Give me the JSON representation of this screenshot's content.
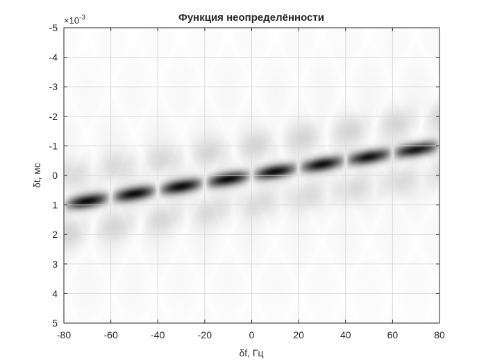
{
  "chart_data": {
    "type": "heatmap",
    "title": "Функция неопределённости",
    "xlabel": "δf, Гц",
    "ylabel": "δt, мс",
    "y_multiplier_label": "×10-3",
    "xlim": [
      -80,
      80
    ],
    "ylim": [
      -5,
      5
    ],
    "y_axis_reversed": true,
    "grid": true,
    "colormap": "gray-inverted",
    "x_ticks": [
      -80,
      -60,
      -40,
      -20,
      0,
      20,
      40,
      60,
      80
    ],
    "y_ticks": [
      -5,
      -4,
      -3,
      -2,
      -1,
      0,
      1,
      2,
      3,
      4,
      5
    ],
    "main_ridge": {
      "start": [
        -80,
        1.0
      ],
      "end": [
        80,
        -1.0
      ],
      "lobe_period_hz": 20,
      "intensity": 0.9
    },
    "side_ridges": [
      {
        "offset_ms": -1.0,
        "intensity": 0.12
      },
      {
        "offset_ms": 1.0,
        "intensity": 0.12
      }
    ],
    "colors": {
      "dark": "#000000",
      "light": "#ffffff",
      "grid": "#d9d9d9",
      "axis": "#262626"
    }
  }
}
